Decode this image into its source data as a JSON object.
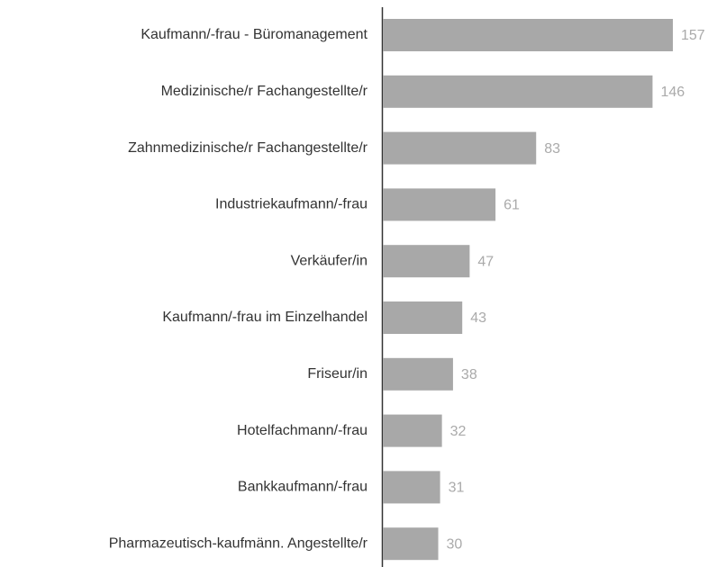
{
  "chart_data": {
    "type": "hbar",
    "categories": [
      "Kaufmann/-frau - Büromanagement",
      "Medizinische/r Fachangestellte/r",
      "Zahnmedizinische/r Fachangestellte/r",
      "Industriekaufmann/-frau",
      "Verkäufer/in",
      "Kaufmann/-frau im Einzelhandel",
      "Friseur/in",
      "Hotelfachmann/-frau",
      "Bankkaufmann/-frau",
      "Pharmazeutisch-kaufmänn. Angestellte/r"
    ],
    "values": [
      157,
      146,
      83,
      61,
      47,
      43,
      38,
      32,
      31,
      30
    ],
    "color": "#a8a8a8"
  }
}
